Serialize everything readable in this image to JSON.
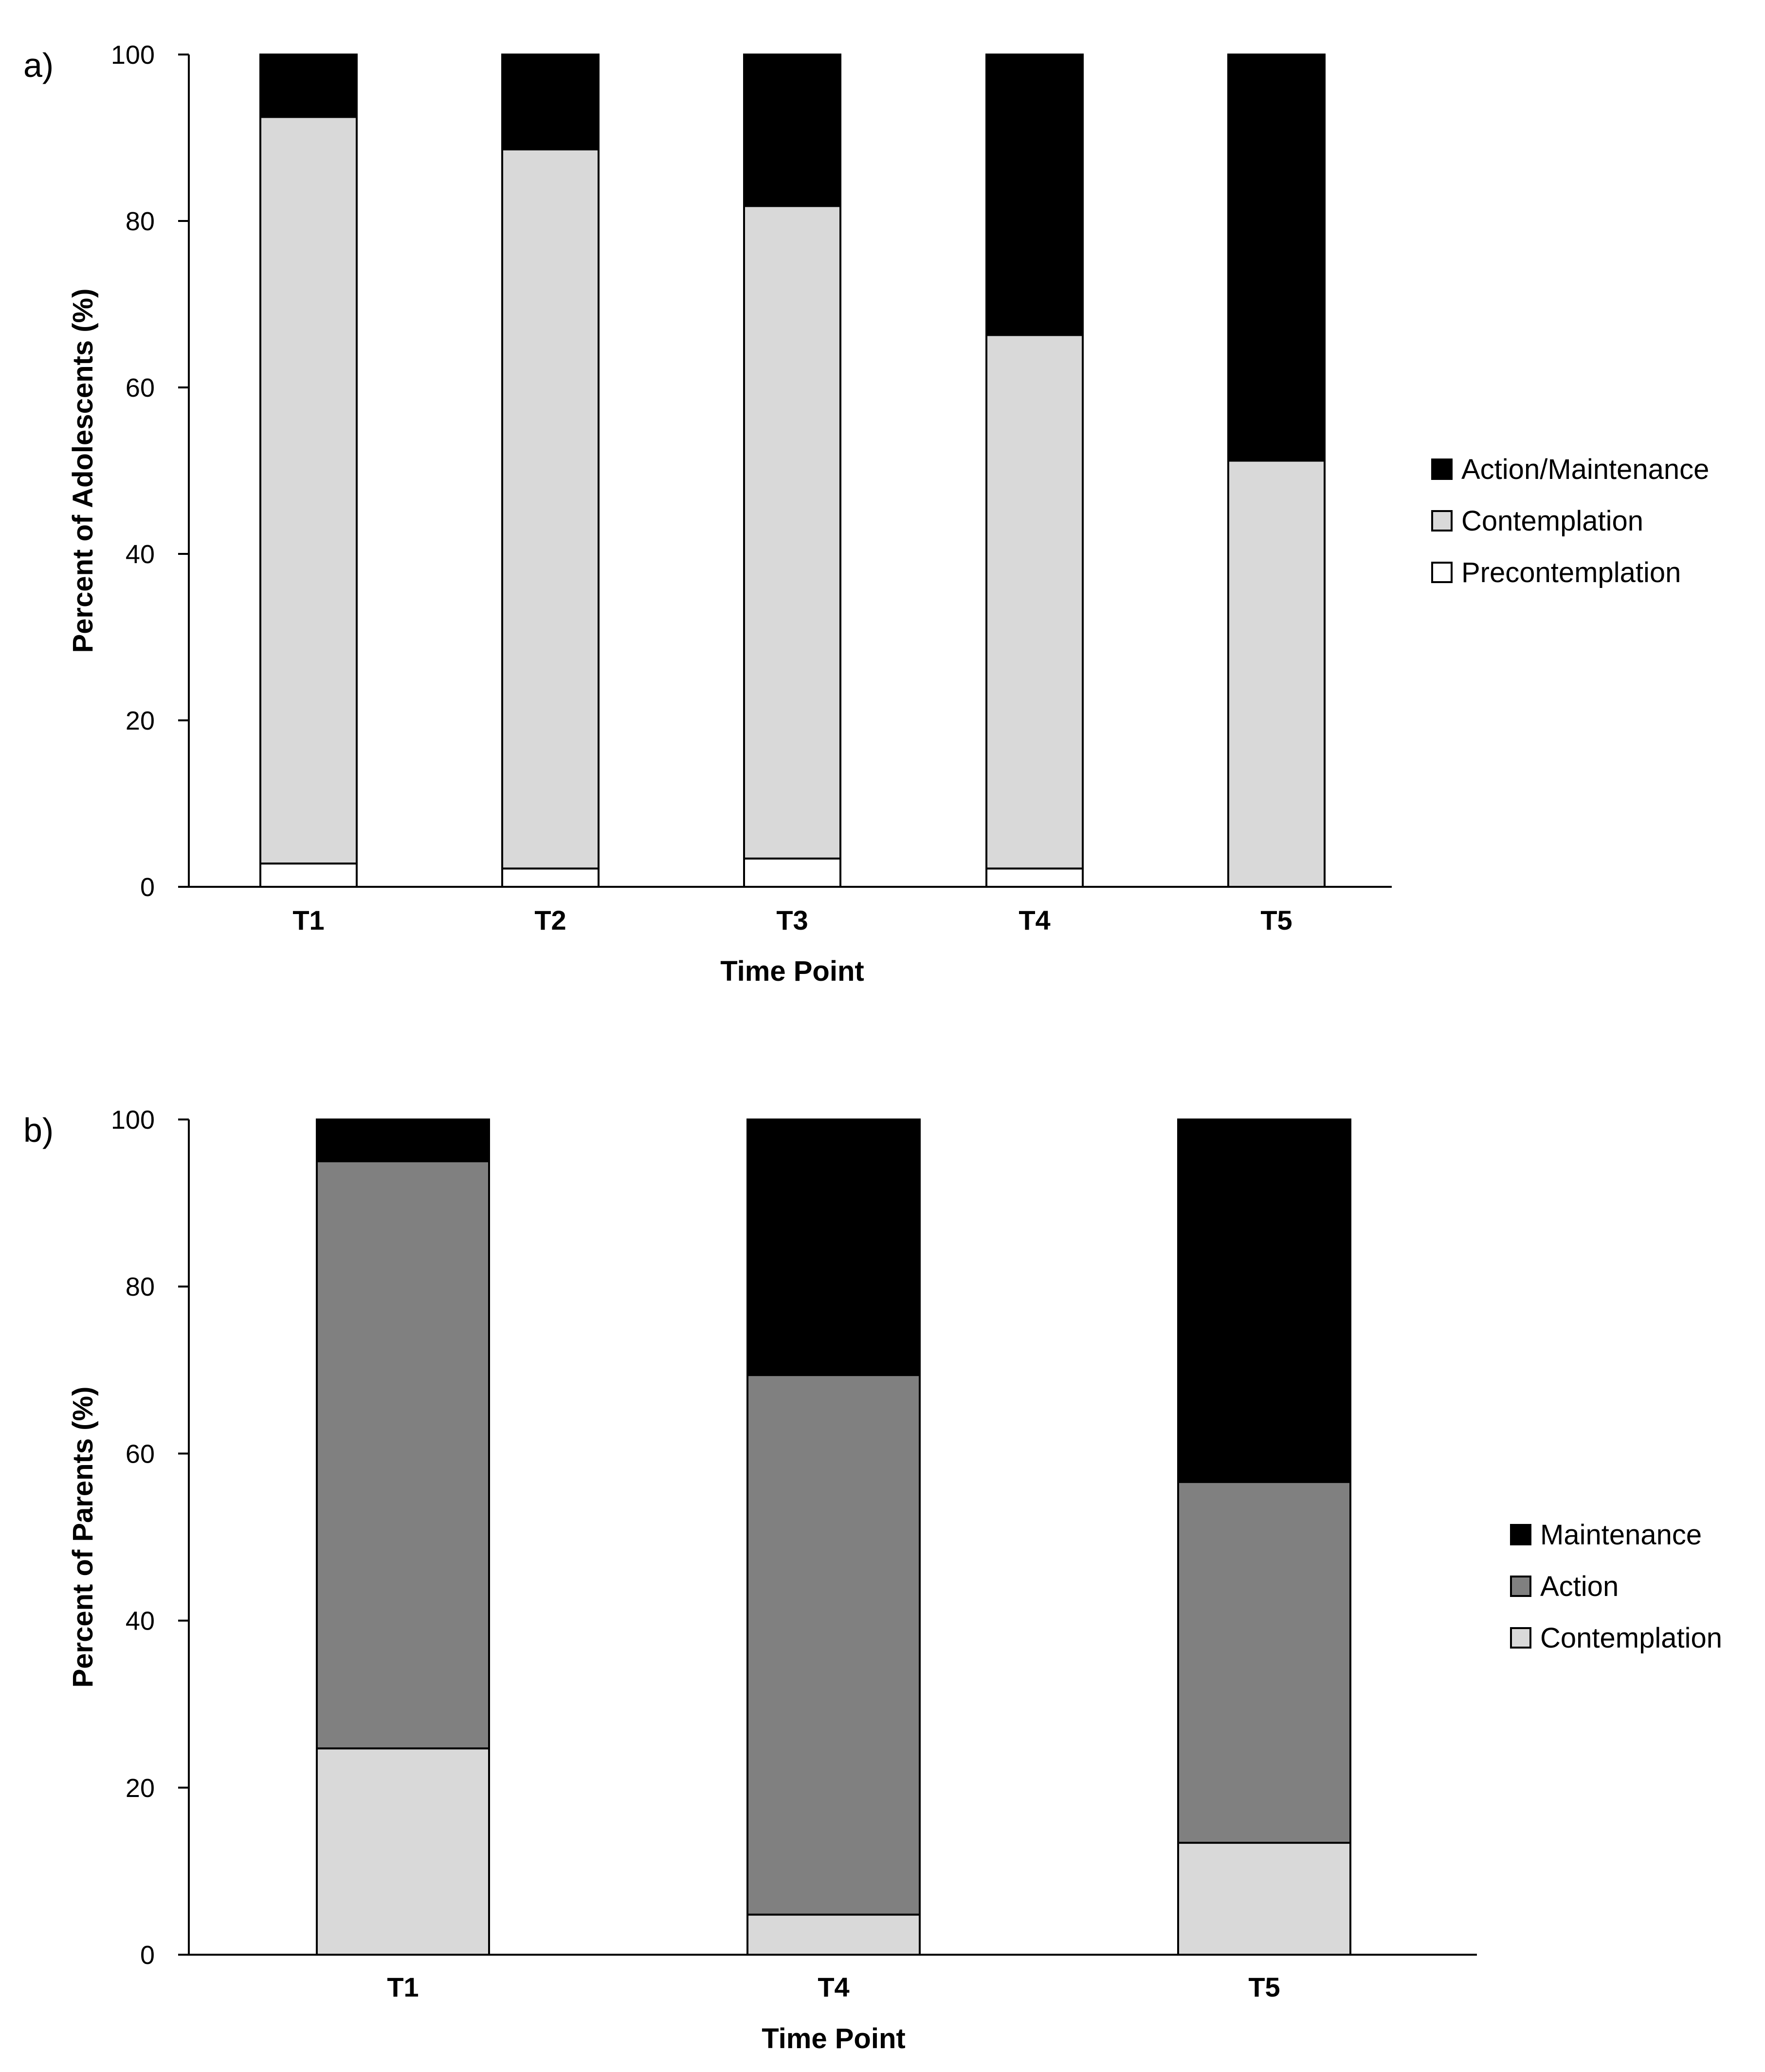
{
  "chart_data": [
    {
      "type": "bar",
      "stacked": true,
      "panel_label": "a)",
      "categories": [
        "T1",
        "T2",
        "T3",
        "T4",
        "T5"
      ],
      "series": [
        {
          "name": "Precontemplation",
          "color": "#ffffff",
          "values": [
            2.8,
            2.2,
            3.4,
            2.2,
            0
          ]
        },
        {
          "name": "Contemplation",
          "color": "#d9d9d9",
          "values": [
            89.7,
            86.4,
            78.4,
            64.1,
            51.2
          ]
        },
        {
          "name": "Action/Maintenance",
          "color": "#000000",
          "values": [
            7.5,
            11.4,
            18.2,
            33.7,
            48.8
          ]
        }
      ],
      "legend_order": [
        "Action/Maintenance",
        "Contemplation",
        "Precontemplation"
      ],
      "legend_position": "right",
      "xlabel": "Time Point",
      "ylabel": "Percent of Adolescents (%)",
      "ylim": [
        0,
        100
      ],
      "yticks": [
        0,
        20,
        40,
        60,
        80,
        100
      ],
      "grid": false
    },
    {
      "type": "bar",
      "stacked": true,
      "panel_label": "b)",
      "categories": [
        "T1",
        "T4",
        "T5"
      ],
      "series": [
        {
          "name": "Contemplation",
          "color": "#d9d9d9",
          "values": [
            24.7,
            4.8,
            13.4
          ]
        },
        {
          "name": "Action",
          "color": "#808080",
          "values": [
            70.3,
            64.6,
            43.2
          ]
        },
        {
          "name": "Maintenance",
          "color": "#000000",
          "values": [
            5.0,
            30.6,
            43.4
          ]
        }
      ],
      "legend_order": [
        "Maintenance",
        "Action",
        "Contemplation"
      ],
      "legend_position": "right",
      "xlabel": "Time Point",
      "ylabel": "Percent of Parents (%)",
      "ylim": [
        0,
        100
      ],
      "yticks": [
        0,
        20,
        40,
        60,
        80,
        100
      ],
      "grid": false
    }
  ]
}
